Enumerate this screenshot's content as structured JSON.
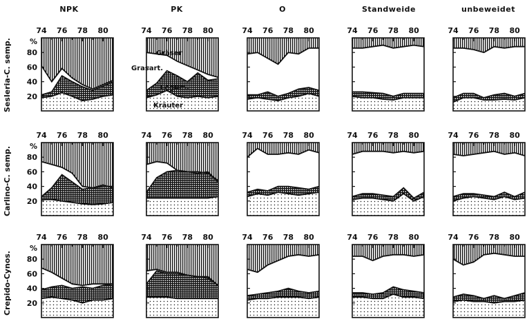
{
  "column_titles": [
    "NPK",
    "PK",
    "O",
    "Standweide",
    "unbeweidet"
  ],
  "row_labels": [
    "Sesleria-C. semp.",
    "Carlino-C. semp.",
    "Crepido-Cynos."
  ],
  "x_tick_labels": [
    "74",
    "76",
    "78",
    "80"
  ],
  "y_unit": "%",
  "y_tick_labels": [
    "80",
    "60",
    "40",
    "20"
  ],
  "legend_annotations": {
    "graeser": "Gräser",
    "grasart": "Grasart.",
    "legum": "Legum.",
    "kraeuter": "Kräuter"
  },
  "colors": {
    "ink": "#111111",
    "background": "#ffffff"
  },
  "chart_data": {
    "type": "area",
    "stacking": "cumulative percent",
    "x": [
      74,
      75,
      76,
      77,
      78,
      79,
      80,
      81
    ],
    "xlim": [
      74,
      81
    ],
    "ylim": [
      0,
      100
    ],
    "layer_order_bottom_to_top": [
      "Kräuter",
      "Legum.",
      "Grasart.",
      "Gräser"
    ],
    "panels": [
      {
        "row": "Sesleria-C. semp.",
        "col": "NPK",
        "kraeuter": [
          18,
          20,
          25,
          20,
          14,
          16,
          20,
          22
        ],
        "legum": [
          22,
          26,
          48,
          40,
          33,
          28,
          34,
          40
        ],
        "grasart": [
          62,
          40,
          58,
          45,
          36,
          30,
          36,
          42
        ]
      },
      {
        "row": "Sesleria-C. semp.",
        "col": "PK",
        "kraeuter": [
          18,
          22,
          28,
          20,
          18,
          20,
          18,
          20
        ],
        "legum": [
          28,
          38,
          55,
          48,
          40,
          52,
          42,
          44
        ],
        "grasart": [
          80,
          78,
          76,
          68,
          62,
          56,
          50,
          46
        ]
      },
      {
        "row": "Sesleria-C. semp.",
        "col": "O",
        "kraeuter": [
          16,
          18,
          16,
          14,
          18,
          20,
          24,
          20
        ],
        "legum": [
          22,
          22,
          26,
          20,
          24,
          30,
          32,
          28
        ],
        "grasart": [
          78,
          80,
          72,
          64,
          80,
          78,
          86,
          86
        ]
      },
      {
        "row": "Sesleria-C. semp.",
        "col": "Standweide",
        "kraeuter": [
          20,
          18,
          18,
          16,
          15,
          18,
          18,
          18
        ],
        "legum": [
          26,
          26,
          25,
          24,
          20,
          24,
          24,
          24
        ],
        "grasart": [
          86,
          86,
          88,
          90,
          86,
          88,
          90,
          88
        ]
      },
      {
        "row": "Sesleria-C. semp.",
        "col": "unbeweidet",
        "kraeuter": [
          12,
          18,
          18,
          15,
          15,
          16,
          15,
          18
        ],
        "legum": [
          18,
          24,
          24,
          18,
          22,
          24,
          20,
          24
        ],
        "grasart": [
          86,
          86,
          84,
          80,
          88,
          86,
          88,
          88
        ]
      },
      {
        "row": "Carlino-C. semp.",
        "col": "NPK",
        "kraeuter": [
          22,
          22,
          20,
          18,
          16,
          15,
          16,
          18
        ],
        "legum": [
          26,
          38,
          56,
          46,
          36,
          38,
          42,
          38
        ],
        "grasart": [
          74,
          70,
          66,
          58,
          40,
          38,
          40,
          40
        ]
      },
      {
        "row": "Carlino-C. semp.",
        "col": "PK",
        "kraeuter": [
          24,
          24,
          24,
          24,
          24,
          24,
          24,
          26
        ],
        "legum": [
          32,
          52,
          60,
          62,
          60,
          58,
          60,
          46
        ],
        "grasart": [
          70,
          74,
          72,
          62,
          60,
          60,
          58,
          48
        ]
      },
      {
        "row": "Carlino-C. semp.",
        "col": "O",
        "kraeuter": [
          26,
          30,
          28,
          32,
          30,
          28,
          30,
          32
        ],
        "legum": [
          32,
          36,
          34,
          40,
          40,
          38,
          36,
          40
        ],
        "grasart": [
          80,
          92,
          84,
          84,
          86,
          84,
          90,
          86
        ]
      },
      {
        "row": "Carlino-C. semp.",
        "col": "Standweide",
        "kraeuter": [
          22,
          24,
          24,
          22,
          20,
          30,
          20,
          26
        ],
        "legum": [
          26,
          30,
          30,
          28,
          26,
          38,
          24,
          32
        ],
        "grasart": [
          84,
          88,
          88,
          88,
          86,
          88,
          86,
          88
        ]
      },
      {
        "row": "Carlino-C. semp.",
        "col": "unbeweidet",
        "kraeuter": [
          20,
          24,
          26,
          24,
          22,
          26,
          22,
          24
        ],
        "legum": [
          26,
          30,
          30,
          28,
          26,
          32,
          26,
          32
        ],
        "grasart": [
          84,
          82,
          84,
          86,
          88,
          84,
          86,
          82
        ]
      },
      {
        "row": "Crepido-Cynos.",
        "col": "NPK",
        "kraeuter": [
          26,
          28,
          26,
          24,
          20,
          24,
          24,
          26
        ],
        "legum": [
          38,
          42,
          44,
          40,
          42,
          40,
          44,
          46
        ],
        "grasart": [
          68,
          62,
          54,
          46,
          44,
          46,
          46,
          46
        ]
      },
      {
        "row": "Crepido-Cynos.",
        "col": "PK",
        "kraeuter": [
          28,
          28,
          28,
          26,
          26,
          26,
          26,
          26
        ],
        "legum": [
          46,
          64,
          60,
          60,
          58,
          56,
          56,
          44
        ],
        "grasart": [
          64,
          66,
          62,
          62,
          58,
          56,
          54,
          44
        ]
      },
      {
        "row": "Crepido-Cynos.",
        "col": "O",
        "kraeuter": [
          24,
          26,
          26,
          28,
          28,
          28,
          26,
          28
        ],
        "legum": [
          30,
          32,
          34,
          36,
          40,
          36,
          34,
          36
        ],
        "grasart": [
          66,
          62,
          72,
          78,
          84,
          86,
          84,
          86
        ]
      },
      {
        "row": "Crepido-Cynos.",
        "col": "Standweide",
        "kraeuter": [
          28,
          28,
          26,
          26,
          32,
          28,
          28,
          26
        ],
        "legum": [
          34,
          34,
          32,
          34,
          42,
          38,
          36,
          34
        ],
        "grasart": [
          84,
          84,
          78,
          84,
          86,
          86,
          84,
          86
        ]
      },
      {
        "row": "Crepido-Cynos.",
        "col": "unbeweidet",
        "kraeuter": [
          22,
          24,
          22,
          22,
          20,
          22,
          22,
          24
        ],
        "legum": [
          28,
          32,
          30,
          26,
          30,
          26,
          30,
          34
        ],
        "grasart": [
          80,
          72,
          76,
          86,
          88,
          86,
          84,
          84
        ]
      }
    ]
  }
}
